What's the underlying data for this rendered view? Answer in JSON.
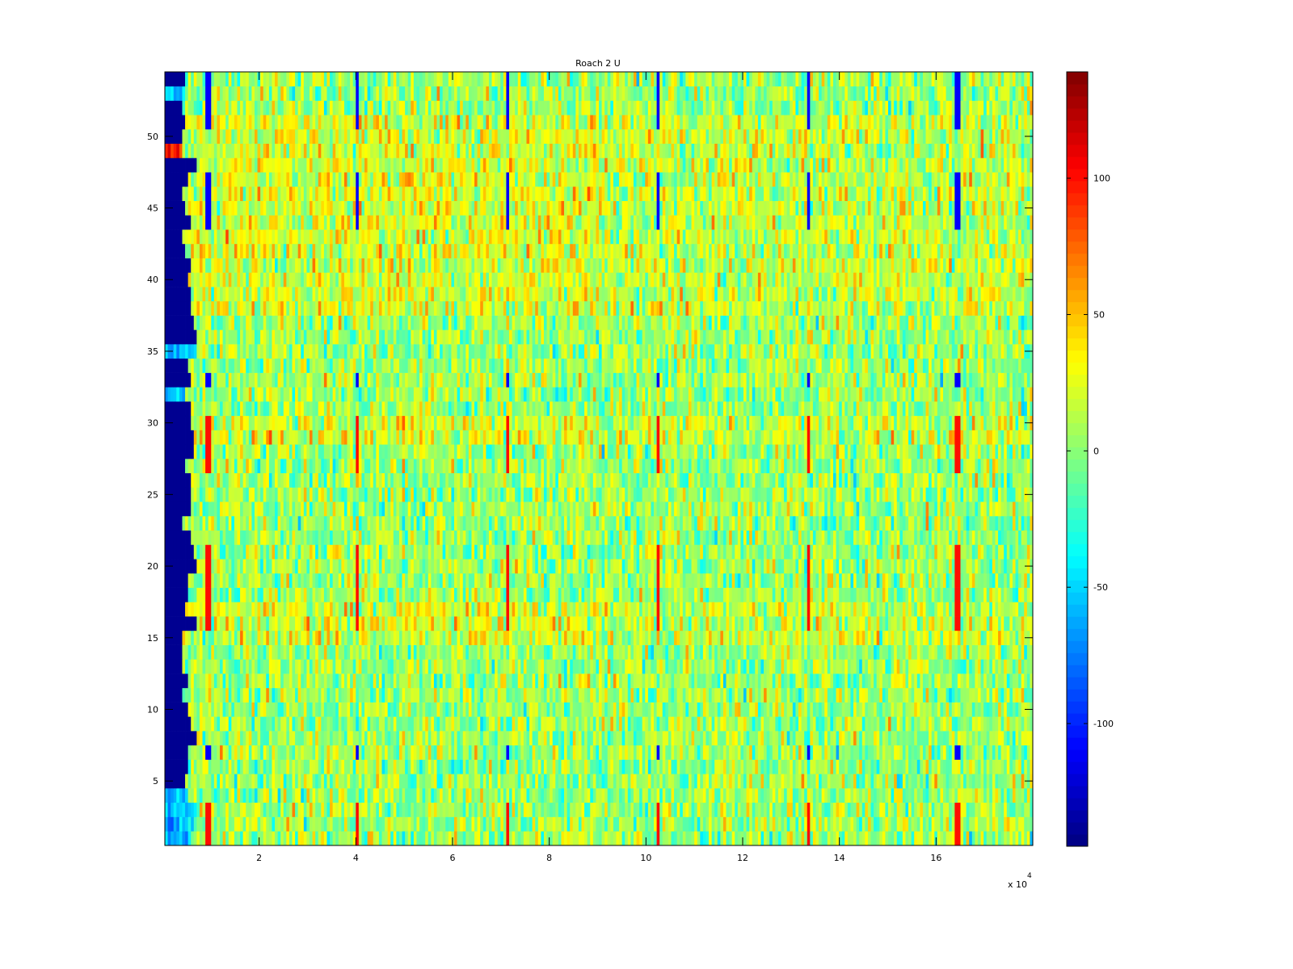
{
  "chart_data": {
    "type": "heatmap",
    "title": "Roach 2 U",
    "xlabel": "",
    "ylabel": "",
    "x_multiplier_label": "x 10",
    "x_multiplier_exponent": "4",
    "xlim": [
      0.05,
      18
    ],
    "ylim": [
      0.5,
      54.5
    ],
    "rows": 54,
    "xticks": [
      2,
      4,
      6,
      8,
      10,
      12,
      14,
      16
    ],
    "yticks": [
      5,
      10,
      15,
      20,
      25,
      30,
      35,
      40,
      45,
      50
    ],
    "colormap": "jet",
    "clim": [
      -145,
      139
    ],
    "colorbar_ticks": [
      -100,
      -50,
      0,
      50,
      100
    ],
    "colorbar_location": "right",
    "noise_std": 22,
    "baseline_value": 5,
    "warm_rows": [
      15,
      16,
      17,
      29,
      30,
      38,
      39,
      40,
      41,
      42,
      43,
      44,
      45,
      46,
      47,
      48,
      49,
      50,
      51
    ],
    "warm_row_offset": 18,
    "event_x": [
      0.95,
      4.05,
      7.15,
      10.25,
      13.35,
      16.45
    ],
    "event_red_rows": [
      1,
      2,
      3,
      16,
      17,
      18,
      19,
      20,
      21,
      27,
      28,
      29,
      30
    ],
    "event_blue_rows": [
      7,
      33,
      44,
      45,
      46,
      47,
      51,
      52,
      53,
      54
    ],
    "left_blue_edge_x": 0.55,
    "left_cyan_rows": [
      1,
      2,
      3,
      4,
      32,
      35,
      53
    ],
    "left_red_rows": [
      49
    ]
  }
}
